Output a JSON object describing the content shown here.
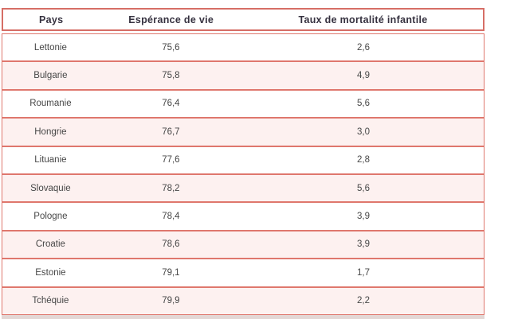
{
  "table": {
    "columns": [
      {
        "label": "Pays"
      },
      {
        "label": "Espérance de vie"
      },
      {
        "label": "Taux de mortalité infantile"
      }
    ],
    "rows": [
      {
        "pays": "Lettonie",
        "esperance": "75,6",
        "mortalite": "2,6"
      },
      {
        "pays": "Bulgarie",
        "esperance": "75,8",
        "mortalite": "4,9"
      },
      {
        "pays": "Roumanie",
        "esperance": "76,4",
        "mortalite": "5,6"
      },
      {
        "pays": "Hongrie",
        "esperance": "76,7",
        "mortalite": "3,0"
      },
      {
        "pays": "Lituanie",
        "esperance": "77,6",
        "mortalite": "2,8"
      },
      {
        "pays": "Slovaquie",
        "esperance": "78,2",
        "mortalite": "5,6"
      },
      {
        "pays": "Pologne",
        "esperance": "78,4",
        "mortalite": "3,9"
      },
      {
        "pays": "Croatie",
        "esperance": "78,6",
        "mortalite": "3,9"
      },
      {
        "pays": "Estonie",
        "esperance": "79,1",
        "mortalite": "1,7"
      },
      {
        "pays": "Tchéquie",
        "esperance": "79,9",
        "mortalite": "2,2"
      }
    ],
    "colors": {
      "border": "#df776d",
      "header_border": "#d66e66",
      "row_bg": "#ffffff",
      "row_alt_bg": "#fdf1f0",
      "header_text": "#35313f",
      "body_text": "#474747",
      "bottom_strip": "#e3d7d5"
    }
  },
  "chart_data": {
    "type": "table",
    "title": "",
    "columns": [
      "Pays",
      "Espérance de vie",
      "Taux de mortalité infantile"
    ],
    "rows": [
      [
        "Lettonie",
        75.6,
        2.6
      ],
      [
        "Bulgarie",
        75.8,
        4.9
      ],
      [
        "Roumanie",
        76.4,
        5.6
      ],
      [
        "Hongrie",
        76.7,
        3.0
      ],
      [
        "Lituanie",
        77.6,
        2.8
      ],
      [
        "Slovaquie",
        78.2,
        5.6
      ],
      [
        "Pologne",
        78.4,
        3.9
      ],
      [
        "Croatie",
        78.6,
        3.9
      ],
      [
        "Estonie",
        79.1,
        1.7
      ],
      [
        "Tchéquie",
        79.9,
        2.2
      ]
    ],
    "notes": "decimal comma formatting as displayed; rows alternate white / light pink"
  }
}
